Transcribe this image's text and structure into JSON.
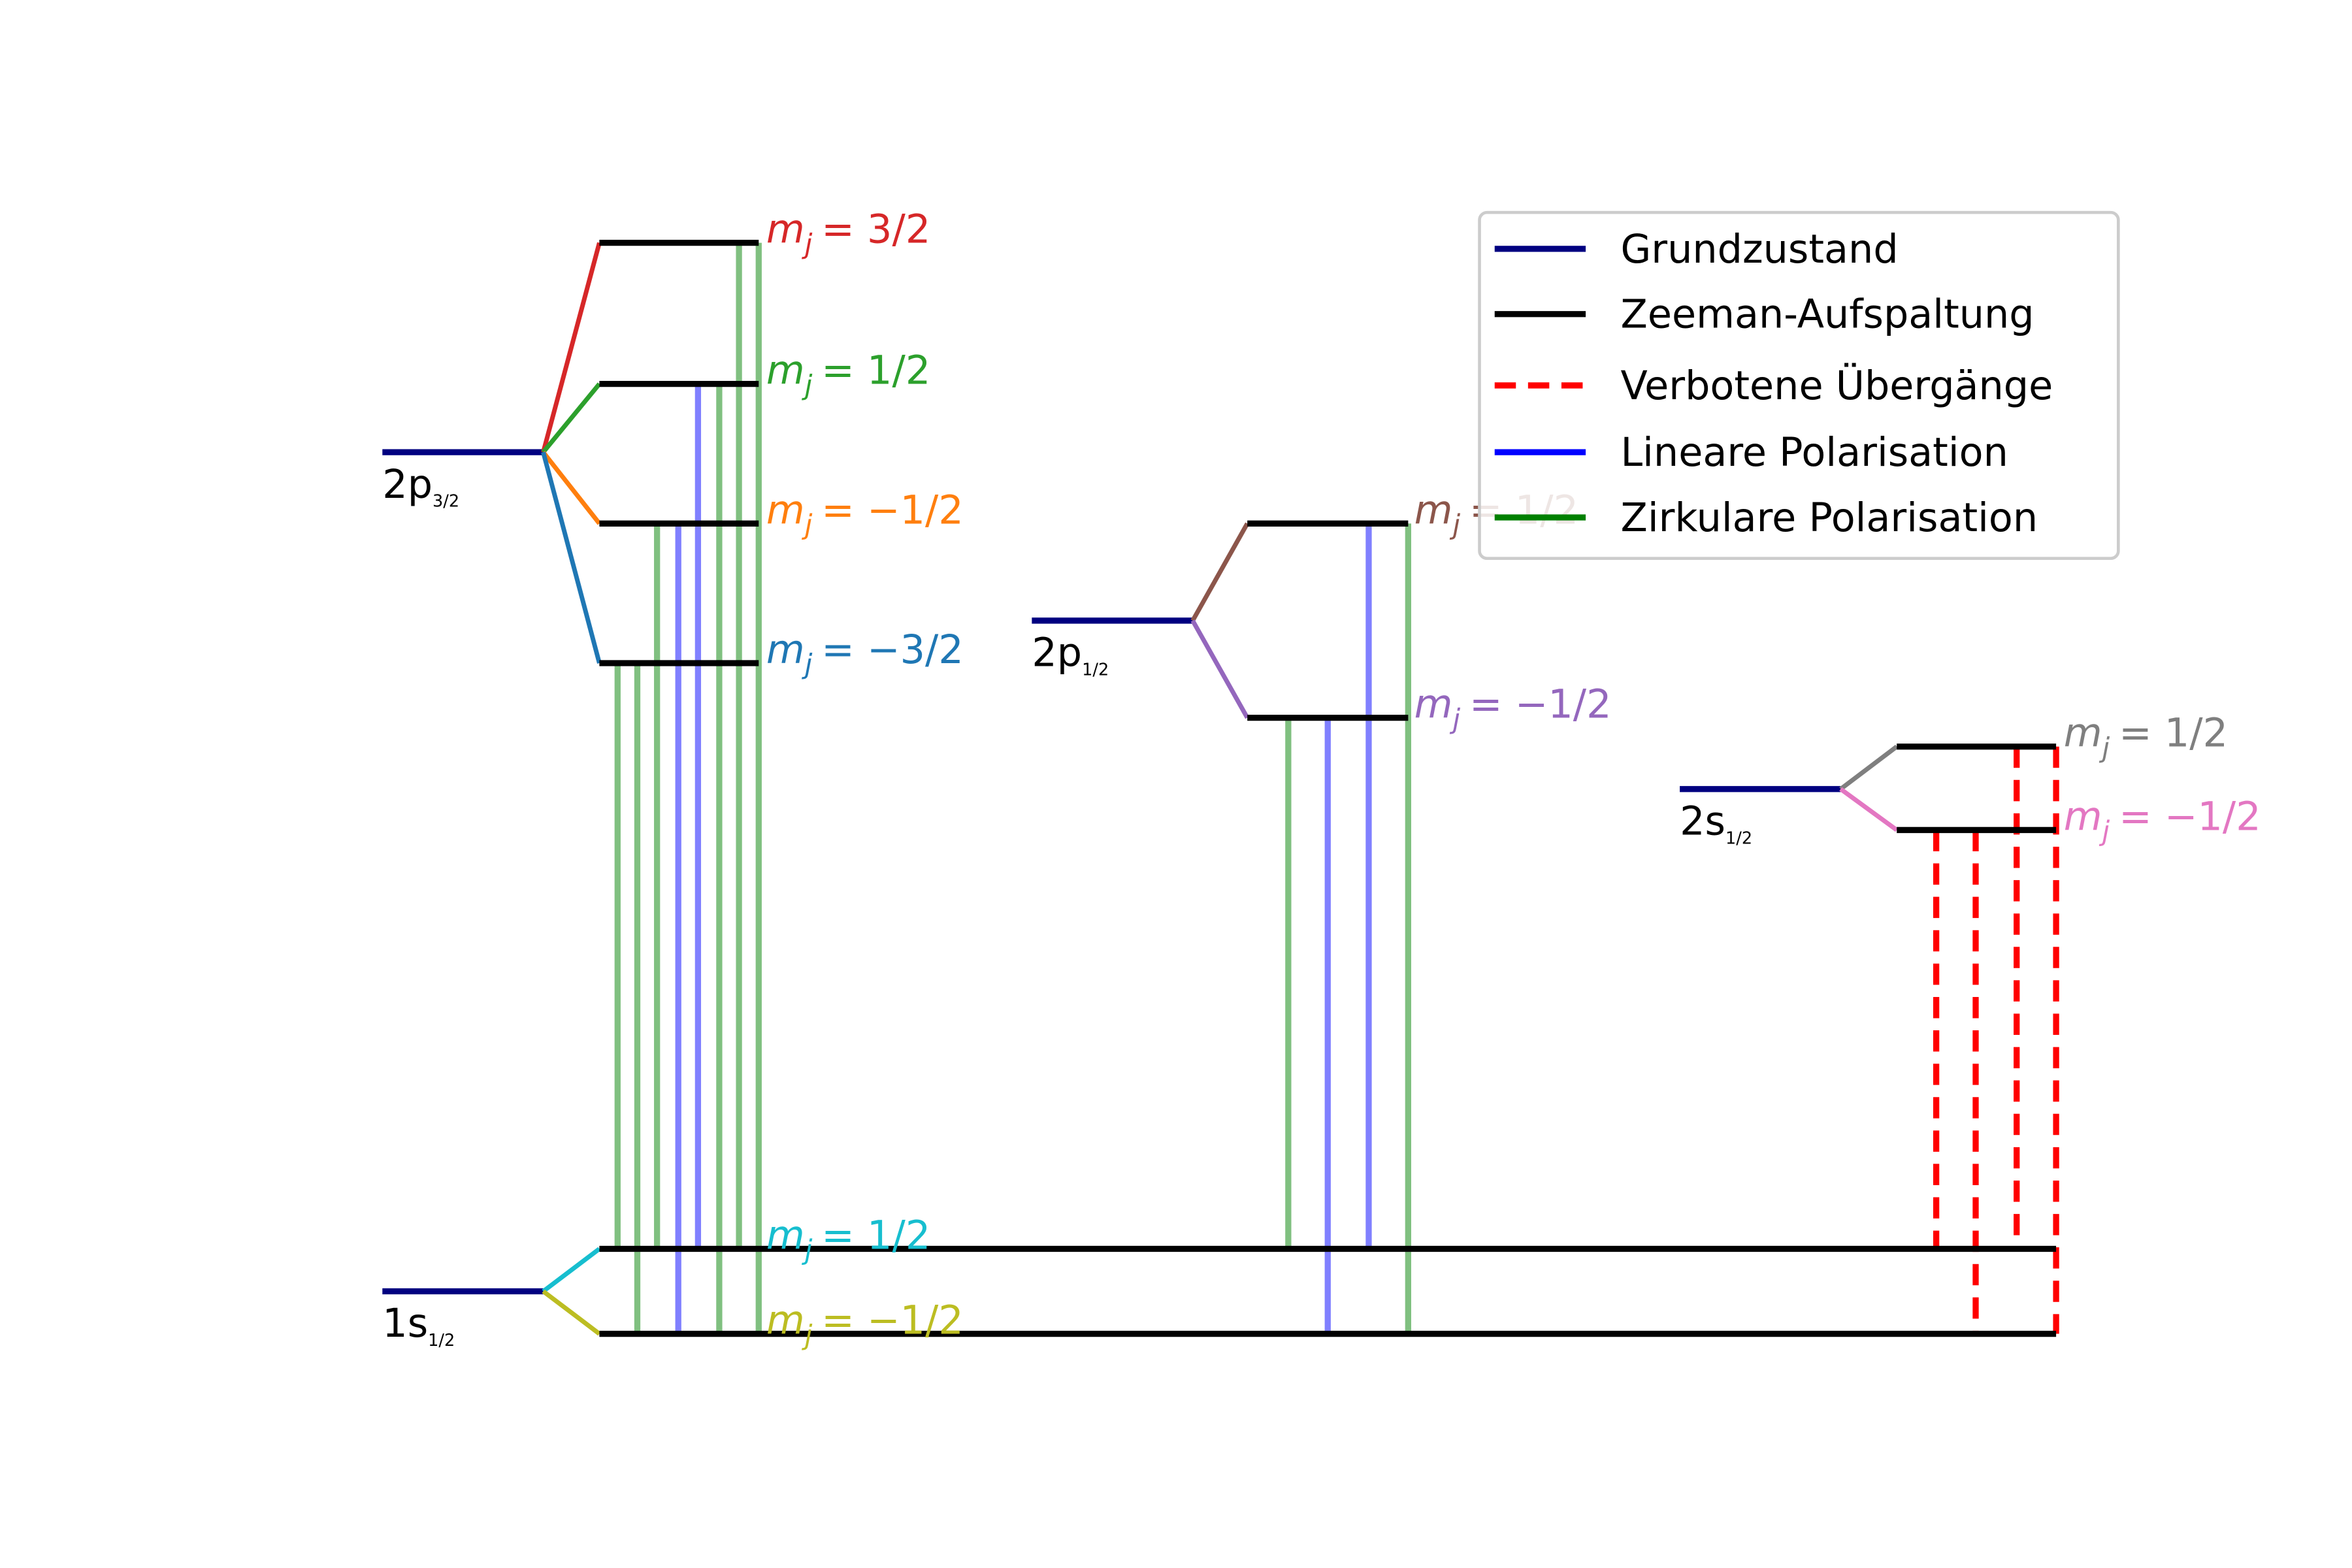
{
  "mj_symbol": {
    "base": "m",
    "sub": "j"
  },
  "levels": [
    {
      "name": "2p",
      "sub": "3/2",
      "sublevels": [
        "= 3/2",
        "= 1/2",
        "= −1/2",
        "= −3/2"
      ]
    },
    {
      "name": "1s",
      "sub": "1/2",
      "sublevels": [
        "= 1/2",
        "= −1/2"
      ]
    },
    {
      "name": "2p",
      "sub": "1/2",
      "sublevels": [
        "= 1/2",
        "= −1/2"
      ]
    },
    {
      "name": "2s",
      "sub": "1/2",
      "sublevels": [
        "= 1/2",
        "= −1/2"
      ]
    }
  ],
  "legend": [
    "Grundzustand",
    "Zeeman-Aufspaltung",
    "Verbotene Übergänge",
    "Lineare Polarisation",
    "Zirkulare Polarisation"
  ]
}
